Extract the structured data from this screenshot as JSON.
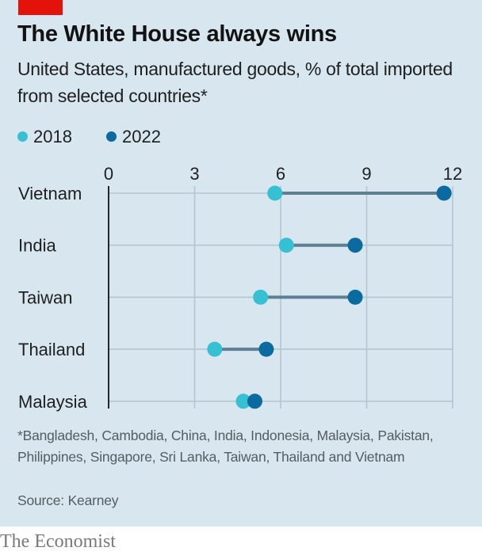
{
  "header": {
    "title": "The White House always wins",
    "subtitle": "United States, manufactured goods, % of total imported from selected countries*"
  },
  "legend": [
    {
      "label": "2018",
      "color": "#36c0d3"
    },
    {
      "label": "2022",
      "color": "#0b6aa0"
    }
  ],
  "footer": {
    "note": "*Bangladesh, Cambodia, China, India, Indonesia, Malaysia, Pakistan, Philippines, Singapore, Sri Lanka, Taiwan, Thailand and Vietnam",
    "source": "Source: Kearney",
    "brand": "The Economist"
  },
  "colors": {
    "background": "#d7e6ef",
    "brand_red": "#e3120b",
    "connector": "#5f7f91",
    "grid": "#b6c5cf"
  },
  "chart_data": {
    "type": "dumbbell",
    "title": "The White House always wins",
    "subtitle": "United States, manufactured goods, % of total imported from selected countries*",
    "xlabel": "",
    "ylabel": "",
    "xlim": [
      0,
      12
    ],
    "xticks": [
      0,
      3,
      6,
      9,
      12
    ],
    "grid": true,
    "legend_position": "top-left",
    "categories": [
      "Vietnam",
      "India",
      "Taiwan",
      "Thailand",
      "Malaysia"
    ],
    "series": [
      {
        "name": "2018",
        "color": "#36c0d3",
        "values": [
          5.8,
          6.2,
          5.3,
          3.7,
          4.7
        ]
      },
      {
        "name": "2022",
        "color": "#0b6aa0",
        "values": [
          11.7,
          8.6,
          8.6,
          5.5,
          5.1
        ]
      }
    ]
  }
}
